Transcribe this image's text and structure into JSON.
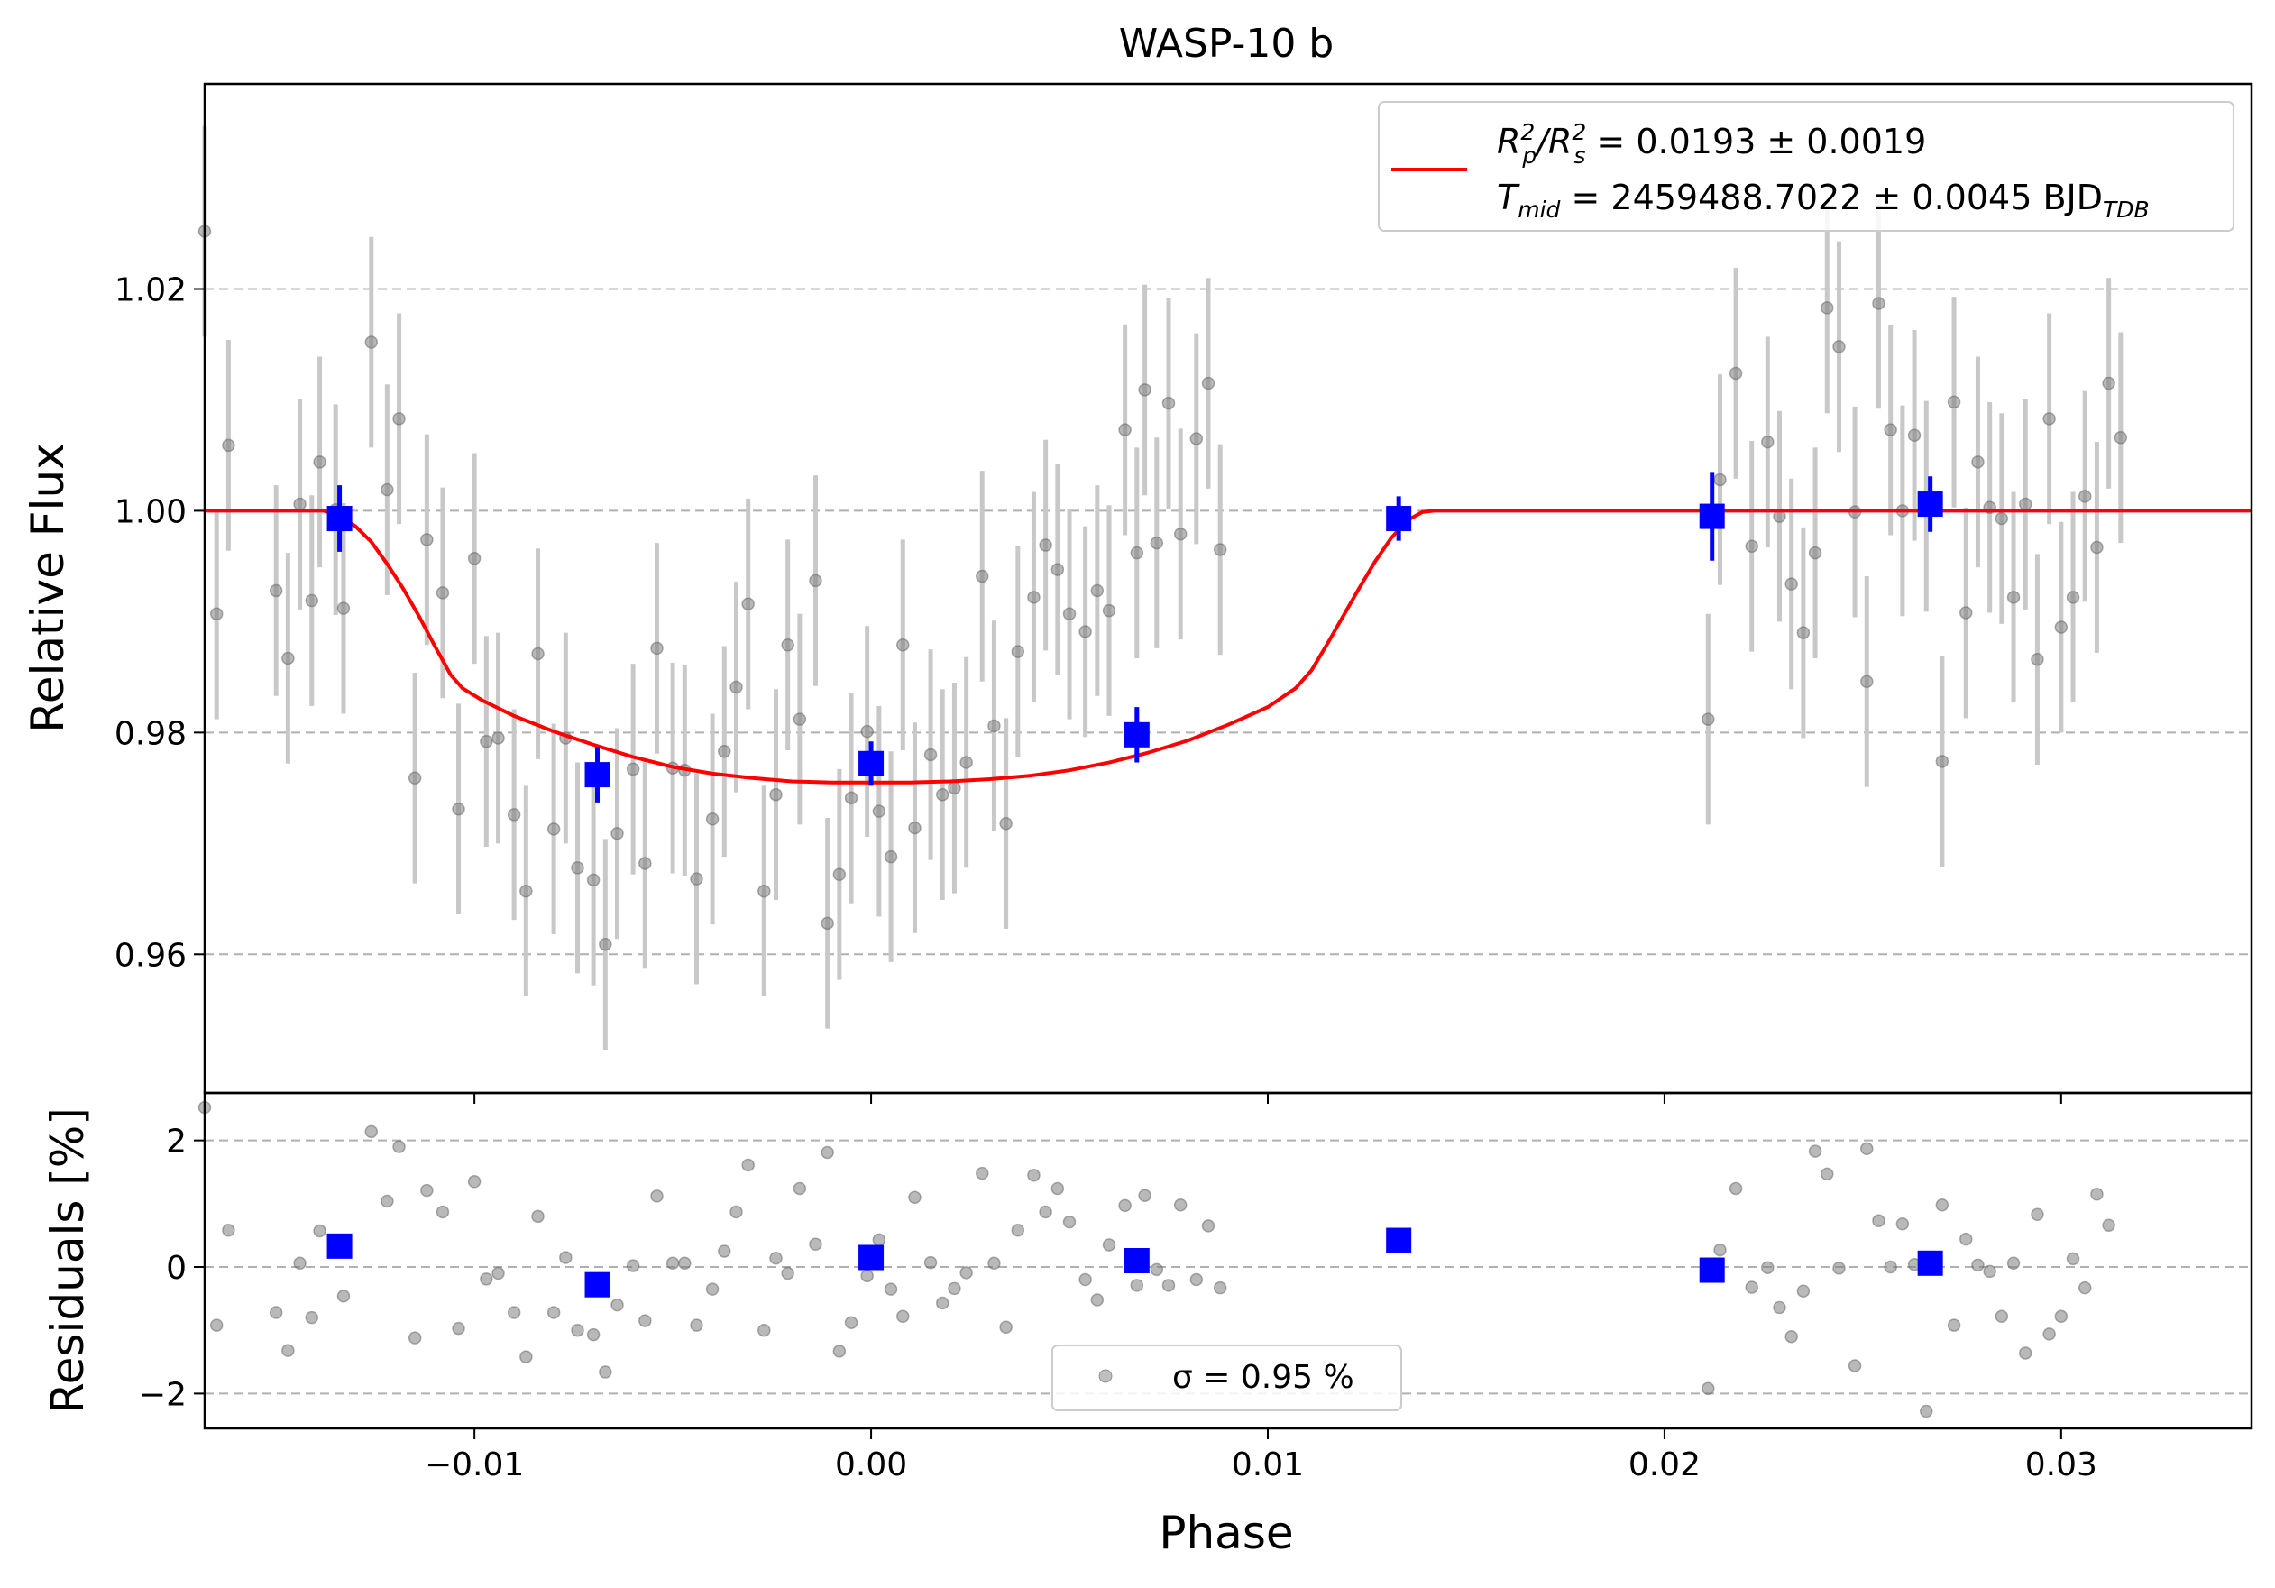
{
  "figure": {
    "title": "WASP-10 b",
    "xlabel": "Phase",
    "colors": {
      "raw_points": "#808080",
      "raw_errorbars": "#c8c8c8",
      "binned": "#0000ff",
      "model": "#ff0000",
      "grid": "#b0b0b0"
    }
  },
  "chart_data": [
    {
      "type": "scatter",
      "panel": "light-curve",
      "ylabel": "Relative Flux",
      "xlim": [
        -0.0168,
        0.0348
      ],
      "ylim": [
        0.9475,
        1.0385
      ],
      "xticks": [
        -0.01,
        0.0,
        0.01,
        0.02,
        0.03
      ],
      "xtick_labels": [
        "−0.01",
        "0.00",
        "0.01",
        "0.02",
        "0.03"
      ],
      "yticks": [
        0.96,
        0.98,
        1.0,
        1.02
      ],
      "ytick_labels": [
        "0.96",
        "0.98",
        "1.00",
        "1.02"
      ],
      "grid": "horizontal dashed",
      "legend": {
        "position": "upper right",
        "line1": {
          "prefix": "R",
          "sub1": "p",
          "sup1": "2",
          "mid": "/R",
          "sub2": "s",
          "sup2": "2",
          "value": " = 0.0193 ± 0.0019"
        },
        "line2": {
          "prefix": "T",
          "sub": "mid",
          "value": " = 2459488.7022 ± 0.0045 BJD",
          "suffix_sub": "TDB"
        }
      },
      "model": {
        "baseline": 1.0,
        "depth_floor": 0.9755,
        "center": 0.0,
        "curve": [
          [
            -0.0168,
            1.0
          ],
          [
            -0.0138,
            1.0
          ],
          [
            -0.0134,
            0.9995
          ],
          [
            -0.013,
            0.9986
          ],
          [
            -0.0126,
            0.9972
          ],
          [
            -0.0122,
            0.9952
          ],
          [
            -0.0118,
            0.993
          ],
          [
            -0.0114,
            0.9905
          ],
          [
            -0.011,
            0.9878
          ],
          [
            -0.0106,
            0.9852
          ],
          [
            -0.0103,
            0.984
          ],
          [
            -0.0098,
            0.9829
          ],
          [
            -0.009,
            0.9815
          ],
          [
            -0.008,
            0.9801
          ],
          [
            -0.007,
            0.9789
          ],
          [
            -0.006,
            0.9778
          ],
          [
            -0.005,
            0.9769
          ],
          [
            -0.004,
            0.9763
          ],
          [
            -0.003,
            0.9759
          ],
          [
            -0.002,
            0.9756
          ],
          [
            -0.001,
            0.9755
          ],
          [
            0.0,
            0.9755
          ],
          [
            0.001,
            0.9755
          ],
          [
            0.002,
            0.9756
          ],
          [
            0.003,
            0.9758
          ],
          [
            0.004,
            0.9761
          ],
          [
            0.005,
            0.9766
          ],
          [
            0.006,
            0.9773
          ],
          [
            0.007,
            0.9782
          ],
          [
            0.008,
            0.9793
          ],
          [
            0.009,
            0.9807
          ],
          [
            0.01,
            0.9823
          ],
          [
            0.0107,
            0.984
          ],
          [
            0.0111,
            0.9856
          ],
          [
            0.0115,
            0.988
          ],
          [
            0.0119,
            0.9905
          ],
          [
            0.0123,
            0.993
          ],
          [
            0.0127,
            0.9954
          ],
          [
            0.0131,
            0.9975
          ],
          [
            0.0135,
            0.9991
          ],
          [
            0.0139,
            0.9999
          ],
          [
            0.0142,
            1.0
          ],
          [
            0.0348,
            1.0
          ]
        ]
      },
      "raw": {
        "errorbar": 0.0095,
        "points": [
          [
            -0.0168,
            1.0252
          ],
          [
            -0.0165,
            0.9907
          ],
          [
            -0.0162,
            1.0059
          ],
          [
            -0.015,
            0.9928
          ],
          [
            -0.0147,
            0.9867
          ],
          [
            -0.0144,
            1.0006
          ],
          [
            -0.0141,
            0.9919
          ],
          [
            -0.0139,
            1.0044
          ],
          [
            -0.0135,
            1.0001
          ],
          [
            -0.0133,
            0.9912
          ],
          [
            -0.0126,
            1.0152
          ],
          [
            -0.0122,
            1.0019
          ],
          [
            -0.0119,
            1.0083
          ],
          [
            -0.0115,
            0.9759
          ],
          [
            -0.0112,
            0.9974
          ],
          [
            -0.0108,
            0.9926
          ],
          [
            -0.0104,
            0.9731
          ],
          [
            -0.01,
            0.9957
          ],
          [
            -0.0097,
            0.9792
          ],
          [
            -0.0094,
            0.9795
          ],
          [
            -0.009,
            0.9726
          ],
          [
            -0.0087,
            0.9657
          ],
          [
            -0.0084,
            0.9871
          ],
          [
            -0.008,
            0.9713
          ],
          [
            -0.0077,
            0.9795
          ],
          [
            -0.0074,
            0.9678
          ],
          [
            -0.007,
            0.9667
          ],
          [
            -0.0067,
            0.9609
          ],
          [
            -0.0064,
            0.9709
          ],
          [
            -0.006,
            0.9767
          ],
          [
            -0.0057,
            0.9682
          ],
          [
            -0.0054,
            0.9876
          ],
          [
            -0.005,
            0.9768
          ],
          [
            -0.0047,
            0.9766
          ],
          [
            -0.0044,
            0.9668
          ],
          [
            -0.004,
            0.9722
          ],
          [
            -0.0037,
            0.9783
          ],
          [
            -0.0034,
            0.9841
          ],
          [
            -0.0031,
            0.9916
          ],
          [
            -0.0027,
            0.9657
          ],
          [
            -0.0024,
            0.9744
          ],
          [
            -0.0021,
            0.9879
          ],
          [
            -0.0018,
            0.9812
          ],
          [
            -0.0014,
            0.9937
          ],
          [
            -0.0011,
            0.9628
          ],
          [
            -0.0008,
            0.9672
          ],
          [
            -0.0005,
            0.9741
          ],
          [
            -0.0001,
            0.9801
          ],
          [
            0.0002,
            0.9729
          ],
          [
            0.0005,
            0.9688
          ],
          [
            0.0008,
            0.9879
          ],
          [
            0.0011,
            0.9714
          ],
          [
            0.0015,
            0.978
          ],
          [
            0.0018,
            0.9744
          ],
          [
            0.0021,
            0.975
          ],
          [
            0.0024,
            0.9773
          ],
          [
            0.0028,
            0.9941
          ],
          [
            0.0031,
            0.9806
          ],
          [
            0.0034,
            0.9718
          ],
          [
            0.0037,
            0.9873
          ],
          [
            0.0041,
            0.9922
          ],
          [
            0.0044,
            0.9969
          ],
          [
            0.0047,
            0.9947
          ],
          [
            0.005,
            0.9907
          ],
          [
            0.0054,
            0.9891
          ],
          [
            0.0057,
            0.9928
          ],
          [
            0.006,
            0.991
          ],
          [
            0.0064,
            1.0073
          ],
          [
            0.0067,
            0.9962
          ],
          [
            0.0069,
            1.0109
          ],
          [
            0.0072,
            0.9971
          ],
          [
            0.0075,
            1.0097
          ],
          [
            0.0078,
            0.9979
          ],
          [
            0.0082,
            1.0065
          ],
          [
            0.0085,
            1.0115
          ],
          [
            0.0088,
            0.9965
          ],
          [
            0.0211,
            0.9812
          ],
          [
            0.0214,
            1.0028
          ],
          [
            0.0218,
            1.0124
          ],
          [
            0.0222,
            0.9968
          ],
          [
            0.0226,
            1.0062
          ],
          [
            0.0229,
            0.9995
          ],
          [
            0.0232,
            0.9934
          ],
          [
            0.0235,
            0.989
          ],
          [
            0.0238,
            0.9962
          ],
          [
            0.0241,
            1.0183
          ],
          [
            0.0244,
            1.0148
          ],
          [
            0.0248,
            0.9999
          ],
          [
            0.0251,
            0.9846
          ],
          [
            0.0254,
            1.0187
          ],
          [
            0.0257,
            1.0073
          ],
          [
            0.026,
            1.0
          ],
          [
            0.0263,
            1.0068
          ],
          [
            0.0266,
            1.0004
          ],
          [
            0.027,
            0.9774
          ],
          [
            0.0273,
            1.0098
          ],
          [
            0.0276,
            0.9908
          ],
          [
            0.0279,
            1.0044
          ],
          [
            0.0282,
            1.0003
          ],
          [
            0.0285,
            0.9993
          ],
          [
            0.0288,
            0.9922
          ],
          [
            0.0291,
            1.0006
          ],
          [
            0.0294,
            0.9866
          ],
          [
            0.0297,
            1.0083
          ],
          [
            0.03,
            0.9895
          ],
          [
            0.0303,
            0.9922
          ],
          [
            0.0306,
            1.0013
          ],
          [
            0.0309,
            0.9967
          ],
          [
            0.0312,
            1.0115
          ],
          [
            0.0315,
            1.0066
          ]
        ]
      },
      "binned": [
        [
          -0.0134,
          0.9993,
          0.003
        ],
        [
          -0.0069,
          0.9762,
          0.0025
        ],
        [
          0.0,
          0.9772,
          0.002
        ],
        [
          0.0067,
          0.9798,
          0.0025
        ],
        [
          0.0133,
          0.9993,
          0.002
        ],
        [
          0.0212,
          0.9995,
          0.004
        ],
        [
          0.0267,
          1.0006,
          0.0025
        ]
      ]
    },
    {
      "type": "scatter",
      "panel": "residuals",
      "ylabel": "Residuals [%]",
      "xlim": [
        -0.0168,
        0.0348
      ],
      "ylim": [
        -2.55,
        2.75
      ],
      "yticks": [
        -2,
        0,
        2
      ],
      "ytick_labels": [
        "−2",
        "0",
        "2"
      ],
      "grid": "horizontal dashed",
      "legend": {
        "position": "lower center",
        "sigma_label": "σ = 0.95 %"
      },
      "raw": [
        [
          -0.0168,
          2.52
        ],
        [
          -0.0165,
          -0.92
        ],
        [
          -0.0162,
          0.58
        ],
        [
          -0.015,
          -0.72
        ],
        [
          -0.0147,
          -1.32
        ],
        [
          -0.0144,
          0.06
        ],
        [
          -0.0141,
          -0.8
        ],
        [
          -0.0139,
          0.57
        ],
        [
          -0.0135,
          0.24
        ],
        [
          -0.0133,
          -0.46
        ],
        [
          -0.0126,
          2.14
        ],
        [
          -0.0122,
          1.04
        ],
        [
          -0.0119,
          1.9
        ],
        [
          -0.0115,
          -1.12
        ],
        [
          -0.0112,
          1.21
        ],
        [
          -0.0108,
          0.87
        ],
        [
          -0.0104,
          -0.97
        ],
        [
          -0.01,
          1.35
        ],
        [
          -0.0097,
          -0.19
        ],
        [
          -0.0094,
          -0.1
        ],
        [
          -0.009,
          -0.72
        ],
        [
          -0.0087,
          -1.42
        ],
        [
          -0.0084,
          0.8
        ],
        [
          -0.008,
          -0.72
        ],
        [
          -0.0077,
          0.15
        ],
        [
          -0.0074,
          -1.0
        ],
        [
          -0.007,
          -1.07
        ],
        [
          -0.0067,
          -1.66
        ],
        [
          -0.0064,
          -0.6
        ],
        [
          -0.006,
          0.02
        ],
        [
          -0.0057,
          -0.85
        ],
        [
          -0.0054,
          1.12
        ],
        [
          -0.005,
          0.06
        ],
        [
          -0.0047,
          0.06
        ],
        [
          -0.0044,
          -0.92
        ],
        [
          -0.004,
          -0.35
        ],
        [
          -0.0037,
          0.25
        ],
        [
          -0.0034,
          0.87
        ],
        [
          -0.0031,
          1.61
        ],
        [
          -0.0027,
          -1.0
        ],
        [
          -0.0024,
          0.14
        ],
        [
          -0.0021,
          -0.1
        ],
        [
          -0.0018,
          1.24
        ],
        [
          -0.0014,
          0.36
        ],
        [
          -0.0011,
          1.81
        ],
        [
          -0.0008,
          -1.33
        ],
        [
          -0.0005,
          -0.88
        ],
        [
          -0.0001,
          -0.14
        ],
        [
          0.0002,
          0.43
        ],
        [
          0.0005,
          -0.35
        ],
        [
          0.0008,
          -0.78
        ],
        [
          0.0011,
          1.1
        ],
        [
          0.0015,
          0.07
        ],
        [
          0.0018,
          -0.57
        ],
        [
          0.0021,
          -0.34
        ],
        [
          0.0024,
          -0.09
        ],
        [
          0.0028,
          1.48
        ],
        [
          0.0031,
          0.06
        ],
        [
          0.0034,
          -0.95
        ],
        [
          0.0037,
          0.58
        ],
        [
          0.0041,
          1.45
        ],
        [
          0.0044,
          0.87
        ],
        [
          0.0047,
          1.24
        ],
        [
          0.005,
          0.71
        ],
        [
          0.0054,
          -0.2
        ],
        [
          0.0057,
          -0.52
        ],
        [
          0.006,
          0.35
        ],
        [
          0.0064,
          0.97
        ],
        [
          0.0067,
          -0.29
        ],
        [
          0.0069,
          1.13
        ],
        [
          0.0072,
          -0.04
        ],
        [
          0.0075,
          -0.29
        ],
        [
          0.0078,
          0.98
        ],
        [
          0.0082,
          -0.2
        ],
        [
          0.0085,
          0.65
        ],
        [
          0.0088,
          -0.33
        ],
        [
          0.0211,
          -1.92
        ],
        [
          0.0214,
          0.27
        ],
        [
          0.0218,
          1.24
        ],
        [
          0.0222,
          -0.32
        ],
        [
          0.0226,
          -0.01
        ],
        [
          0.0229,
          -0.64
        ],
        [
          0.0232,
          -1.1
        ],
        [
          0.0235,
          -0.38
        ],
        [
          0.0238,
          1.83
        ],
        [
          0.0241,
          1.47
        ],
        [
          0.0244,
          -0.02
        ],
        [
          0.0248,
          -1.56
        ],
        [
          0.0251,
          1.87
        ],
        [
          0.0254,
          0.73
        ],
        [
          0.0257,
          0.0
        ],
        [
          0.026,
          0.68
        ],
        [
          0.0263,
          0.04
        ],
        [
          0.0266,
          -2.28
        ],
        [
          0.027,
          0.98
        ],
        [
          0.0273,
          -0.92
        ],
        [
          0.0276,
          0.44
        ],
        [
          0.0279,
          0.03
        ],
        [
          0.0282,
          -0.07
        ],
        [
          0.0285,
          -0.78
        ],
        [
          0.0288,
          0.06
        ],
        [
          0.0291,
          -1.36
        ],
        [
          0.0294,
          0.83
        ],
        [
          0.0297,
          -1.06
        ],
        [
          0.03,
          -0.78
        ],
        [
          0.0303,
          0.13
        ],
        [
          0.0306,
          -0.33
        ],
        [
          0.0309,
          1.15
        ],
        [
          0.0312,
          0.66
        ]
      ],
      "binned": [
        [
          -0.0134,
          0.33
        ],
        [
          -0.0069,
          -0.28
        ],
        [
          0.0,
          0.15
        ],
        [
          0.0067,
          0.1
        ],
        [
          0.0133,
          0.42
        ],
        [
          0.0212,
          -0.05
        ],
        [
          0.0267,
          0.06
        ]
      ]
    }
  ]
}
